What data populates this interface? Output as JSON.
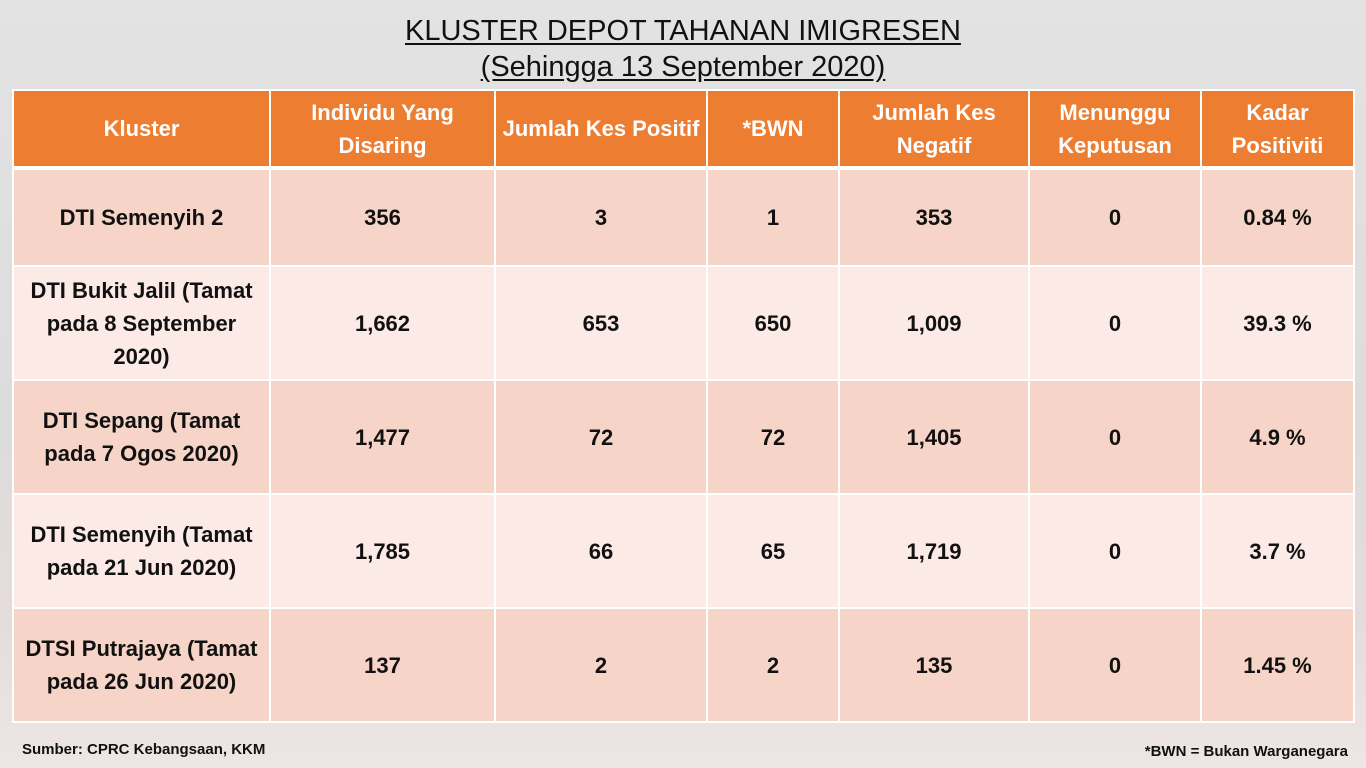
{
  "title": {
    "line1": "KLUSTER DEPOT TAHANAN IMIGRESEN",
    "line2": "(Sehingga 13 September 2020)"
  },
  "table": {
    "headers": [
      "Kluster",
      "Individu Yang Disaring",
      "Jumlah Kes Positif",
      "*BWN",
      "Jumlah Kes Negatif",
      "Menunggu Keputusan",
      "Kadar Positiviti"
    ],
    "rows": [
      {
        "kluster": "DTI Semenyih 2",
        "disaring": "356",
        "positif": "3",
        "bwn": "1",
        "negatif": "353",
        "menunggu": "0",
        "kadar": "0.84 %"
      },
      {
        "kluster": "DTI Bukit Jalil (Tamat pada 8 September 2020)",
        "disaring": "1,662",
        "positif": "653",
        "bwn": "650",
        "negatif": "1,009",
        "menunggu": "0",
        "kadar": "39.3 %"
      },
      {
        "kluster": "DTI Sepang (Tamat pada 7 Ogos 2020)",
        "disaring": "1,477",
        "positif": "72",
        "bwn": "72",
        "negatif": "1,405",
        "menunggu": "0",
        "kadar": "4.9 %"
      },
      {
        "kluster": "DTI Semenyih (Tamat pada 21 Jun 2020)",
        "disaring": "1,785",
        "positif": "66",
        "bwn": "65",
        "negatif": "1,719",
        "menunggu": "0",
        "kadar": "3.7 %"
      },
      {
        "kluster": "DTSI Putrajaya (Tamat pada 26 Jun 2020)",
        "disaring": "137",
        "positif": "2",
        "bwn": "2",
        "negatif": "135",
        "menunggu": "0",
        "kadar": "1.45 %"
      }
    ]
  },
  "footer": {
    "source": "Sumber: CPRC Kebangsaan, KKM",
    "note": "*BWN = Bukan Warganegara"
  },
  "colors": {
    "header": "#ed7d31",
    "row_dark": "#f6d4c8",
    "row_light": "#fbeae5"
  }
}
